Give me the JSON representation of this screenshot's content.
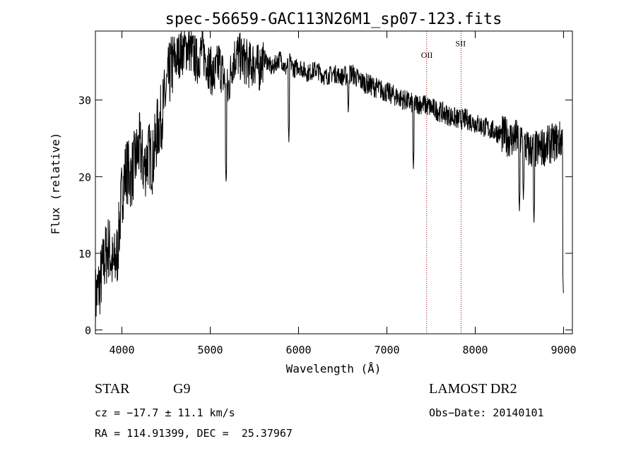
{
  "chart_data": {
    "type": "line",
    "title": "spec-56659-GAC113N26M1_sp07-123.fits",
    "xlabel": "Wavelength (Å)",
    "ylabel": "Flux (relative)",
    "xlim": [
      3700,
      9100
    ],
    "ylim": [
      -0.5,
      39
    ],
    "xticks": [
      4000,
      5000,
      6000,
      7000,
      8000,
      9000
    ],
    "yticks": [
      0,
      10,
      20,
      30
    ],
    "grid": false,
    "series": [
      {
        "color": "#000000",
        "x": [
          3700,
          3750,
          3800,
          3850,
          3900,
          3950,
          4000,
          4050,
          4100,
          4150,
          4200,
          4250,
          4300,
          4350,
          4400,
          4450,
          4500,
          4550,
          4600,
          4650,
          4700,
          4750,
          4800,
          4850,
          4900,
          4950,
          5000,
          5050,
          5100,
          5150,
          5200,
          5250,
          5300,
          5350,
          5400,
          5450,
          5500,
          5550,
          5600,
          5650,
          5700,
          5750,
          5800,
          5850,
          5900,
          5950,
          6000,
          6100,
          6200,
          6300,
          6400,
          6500,
          6600,
          6700,
          6800,
          6900,
          7000,
          7100,
          7200,
          7300,
          7400,
          7500,
          7600,
          7700,
          7800,
          7900,
          8000,
          8100,
          8200,
          8300,
          8400,
          8500,
          8600,
          8700,
          8800,
          8900,
          9000
        ],
        "y": [
          4,
          6,
          9,
          11,
          8,
          10,
          18,
          21,
          20,
          22,
          24,
          21,
          23,
          22,
          26,
          28,
          31,
          34,
          35,
          36,
          36.5,
          37,
          36,
          35,
          36.5,
          35.5,
          34,
          33,
          35,
          33,
          31,
          35,
          36,
          35.5,
          35,
          34.5,
          35,
          34,
          35.5,
          35,
          34,
          35,
          35.5,
          34,
          35,
          34,
          34.5,
          33.5,
          34,
          33,
          33.5,
          33,
          33.5,
          32.5,
          32,
          31.5,
          31,
          30.5,
          30,
          29.5,
          29.5,
          29,
          28.5,
          28,
          27.5,
          27.5,
          27,
          26.5,
          26,
          25.5,
          25,
          25,
          23.5,
          23.5,
          24,
          24.5,
          25
        ]
      }
    ],
    "annotations": [
      {
        "label": "OII",
        "x": 7450,
        "y": 35.5
      },
      {
        "label": "SII",
        "x": 7840,
        "y": 37
      }
    ],
    "vlines": [
      7450,
      7840
    ],
    "absorption_lines": [
      {
        "x": 5180,
        "y": 19
      },
      {
        "x": 5890,
        "y": 24.5
      },
      {
        "x": 6563,
        "y": 28
      },
      {
        "x": 7300,
        "y": 21
      },
      {
        "x": 8500,
        "y": 15.5
      },
      {
        "x": 8545,
        "y": 17
      },
      {
        "x": 8665,
        "y": 14
      }
    ]
  },
  "labels": {
    "object_class": "STAR",
    "subclass": "G9",
    "survey": "LAMOST DR2",
    "cz": "cz = −17.7 ± 11.1 km/s",
    "obs_date": "Obs−Date: 20140101",
    "radec": "RA = 114.91399, DEC =  25.37967"
  }
}
